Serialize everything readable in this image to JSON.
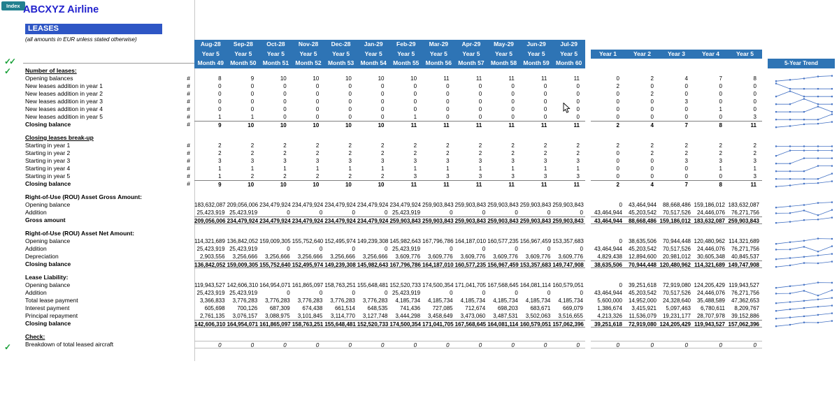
{
  "app": {
    "index_button": "Index",
    "title": "ABCXYZ Airline",
    "sheet_title": "LEASES",
    "subtitle": "(all amounts in EUR unless stated otherwise)",
    "checkmark": "✓",
    "double_checkmark": "✓✓"
  },
  "colors": {
    "header_blue": "#2E74B5",
    "banner_blue": "#2E56C5",
    "title_blue": "#2222CD",
    "teal": "#22808F",
    "check_green": "#18A038",
    "spark": "#4472C4"
  },
  "header": {
    "months": [
      {
        "cap": "Aug-28",
        "yr": "Year 5",
        "num": "Month 49"
      },
      {
        "cap": "Sep-28",
        "yr": "Year 5",
        "num": "Month 50"
      },
      {
        "cap": "Oct-28",
        "yr": "Year 5",
        "num": "Month 51"
      },
      {
        "cap": "Nov-28",
        "yr": "Year 5",
        "num": "Month 52"
      },
      {
        "cap": "Dec-28",
        "yr": "Year 5",
        "num": "Month 53"
      },
      {
        "cap": "Jan-29",
        "yr": "Year 5",
        "num": "Month 54"
      },
      {
        "cap": "Feb-29",
        "yr": "Year 5",
        "num": "Month 55"
      },
      {
        "cap": "Mar-29",
        "yr": "Year 5",
        "num": "Month 56"
      },
      {
        "cap": "Apr-29",
        "yr": "Year 5",
        "num": "Month 57"
      },
      {
        "cap": "May-29",
        "yr": "Year 5",
        "num": "Month 58"
      },
      {
        "cap": "Jun-29",
        "yr": "Year 5",
        "num": "Month 59"
      },
      {
        "cap": "Jul-29",
        "yr": "Year 5",
        "num": "Month 60"
      }
    ],
    "year_cols": [
      "Year 1",
      "Year 2",
      "Year 3",
      "Year 4",
      "Year 5"
    ],
    "trend_label": "5-Year Trend"
  },
  "sections": [
    {
      "title": "Number of leases:",
      "underline": true,
      "int": true,
      "rows": [
        {
          "label": "Opening balances",
          "hash": "#",
          "months": [
            8,
            9,
            10,
            10,
            10,
            10,
            10,
            11,
            11,
            11,
            11,
            11
          ],
          "years": [
            0,
            2,
            4,
            7,
            8
          ]
        },
        {
          "label": "New leases addition in year 1",
          "hash": "#",
          "months": [
            0,
            0,
            0,
            0,
            0,
            0,
            0,
            0,
            0,
            0,
            0,
            0
          ],
          "years": [
            2,
            0,
            0,
            0,
            0
          ]
        },
        {
          "label": "New leases addition in year 2",
          "hash": "#",
          "months": [
            0,
            0,
            0,
            0,
            0,
            0,
            0,
            0,
            0,
            0,
            0,
            0
          ],
          "years": [
            0,
            2,
            0,
            0,
            0
          ]
        },
        {
          "label": "New leases addition in year 3",
          "hash": "#",
          "months": [
            0,
            0,
            0,
            0,
            0,
            0,
            0,
            0,
            0,
            0,
            0,
            0
          ],
          "years": [
            0,
            0,
            3,
            0,
            0
          ]
        },
        {
          "label": "New leases addition in year 4",
          "hash": "#",
          "months": [
            0,
            0,
            0,
            0,
            0,
            0,
            0,
            0,
            0,
            0,
            0,
            0
          ],
          "years": [
            0,
            0,
            0,
            1,
            0
          ]
        },
        {
          "label": "New leases addition in year 5",
          "hash": "#",
          "months": [
            1,
            1,
            0,
            0,
            0,
            0,
            1,
            0,
            0,
            0,
            0,
            0
          ],
          "years": [
            0,
            0,
            0,
            0,
            3
          ]
        },
        {
          "label": "Closing balance",
          "hash": "#",
          "bold": true,
          "border": "t",
          "months": [
            9,
            10,
            10,
            10,
            10,
            10,
            11,
            11,
            11,
            11,
            11,
            11
          ],
          "years": [
            2,
            4,
            7,
            8,
            11
          ]
        }
      ]
    },
    {
      "title": "Closing leases break-up",
      "underline": true,
      "int": true,
      "rows": [
        {
          "label": "Starting in year 1",
          "hash": "#",
          "months": [
            2,
            2,
            2,
            2,
            2,
            2,
            2,
            2,
            2,
            2,
            2,
            2
          ],
          "years": [
            2,
            2,
            2,
            2,
            2
          ]
        },
        {
          "label": "Starting in year 2",
          "hash": "#",
          "months": [
            2,
            2,
            2,
            2,
            2,
            2,
            2,
            2,
            2,
            2,
            2,
            2
          ],
          "years": [
            0,
            2,
            2,
            2,
            2
          ]
        },
        {
          "label": "Starting in year 3",
          "hash": "#",
          "months": [
            3,
            3,
            3,
            3,
            3,
            3,
            3,
            3,
            3,
            3,
            3,
            3
          ],
          "years": [
            0,
            0,
            3,
            3,
            3
          ]
        },
        {
          "label": "Starting in year 4",
          "hash": "#",
          "months": [
            1,
            1,
            1,
            1,
            1,
            1,
            1,
            1,
            1,
            1,
            1,
            1
          ],
          "years": [
            0,
            0,
            0,
            1,
            1
          ]
        },
        {
          "label": "Starting in year 5",
          "hash": "#",
          "months": [
            1,
            2,
            2,
            2,
            2,
            2,
            3,
            3,
            3,
            3,
            3,
            3
          ],
          "years": [
            0,
            0,
            0,
            0,
            3
          ]
        },
        {
          "label": "Closing balance",
          "hash": "#",
          "bold": true,
          "border": "t",
          "months": [
            9,
            10,
            10,
            10,
            10,
            10,
            11,
            11,
            11,
            11,
            11,
            11
          ],
          "years": [
            2,
            4,
            7,
            8,
            11
          ]
        }
      ]
    },
    {
      "title": "Right-of-Use (ROU) Asset Gross Amount:",
      "rows": [
        {
          "label": "Opening balance",
          "months": [
            183632087,
            209056006,
            234479924,
            234479924,
            234479924,
            234479924,
            234479924,
            259903843,
            259903843,
            259903843,
            259903843,
            259903843
          ],
          "years": [
            0,
            43464944,
            88668486,
            159186012,
            183632087
          ]
        },
        {
          "label": "Addition",
          "months": [
            25423919,
            25423919,
            0,
            0,
            0,
            0,
            25423919,
            0,
            0,
            0,
            0,
            0
          ],
          "years": [
            43464944,
            45203542,
            70517526,
            24446076,
            76271756
          ]
        },
        {
          "label": "Gross amount",
          "bold": true,
          "border": "tb",
          "months": [
            209056006,
            234479924,
            234479924,
            234479924,
            234479924,
            234479924,
            259903843,
            259903843,
            259903843,
            259903843,
            259903843,
            259903843
          ],
          "years": [
            43464944,
            88668486,
            159186012,
            183632087,
            259903843
          ]
        }
      ]
    },
    {
      "title": "Right-of-Use (ROU) Asset Net Amount:",
      "rows": [
        {
          "label": "Opening balance",
          "months": [
            114321689,
            136842052,
            159009305,
            155752640,
            152495974,
            149239308,
            145982643,
            167796786,
            164187010,
            160577235,
            156967459,
            153357683
          ],
          "years": [
            0,
            38635506,
            70944448,
            120480962,
            114321689
          ]
        },
        {
          "label": "Addition",
          "months": [
            25423919,
            25423919,
            0,
            0,
            0,
            0,
            25423919,
            0,
            0,
            0,
            0,
            0
          ],
          "years": [
            43464944,
            45203542,
            70517526,
            24446076,
            76271756
          ]
        },
        {
          "label": "Depreciation",
          "months": [
            2903556,
            3256666,
            3256666,
            3256666,
            3256666,
            3256666,
            3609776,
            3609776,
            3609776,
            3609776,
            3609776,
            3609776
          ],
          "years": [
            4829438,
            12894600,
            20981012,
            30605348,
            40845537
          ]
        },
        {
          "label": "Closing balance",
          "bold": true,
          "border": "tb",
          "months": [
            136842052,
            159009305,
            155752640,
            152495974,
            149239308,
            145982643,
            167796786,
            164187010,
            160577235,
            156967459,
            153357683,
            149747908
          ],
          "years": [
            38635506,
            70944448,
            120480962,
            114321689,
            149747908
          ]
        }
      ]
    },
    {
      "title": "Lease Liability:",
      "rows": [
        {
          "label": "Opening balance",
          "months": [
            119943527,
            142606310,
            164954071,
            161865097,
            158763251,
            155648481,
            152520733,
            174500354,
            171041705,
            167568645,
            164081114,
            160579051
          ],
          "years": [
            0,
            39251618,
            72919080,
            124205429,
            119943527
          ]
        },
        {
          "label": "Addition",
          "months": [
            25423919,
            25423919,
            0,
            0,
            0,
            0,
            25423919,
            0,
            0,
            0,
            0,
            0
          ],
          "years": [
            43464944,
            45203542,
            70517526,
            24446076,
            76271756
          ]
        },
        {
          "label": "Total lease payment",
          "months": [
            3366833,
            3776283,
            3776283,
            3776283,
            3776283,
            3776283,
            4185734,
            4185734,
            4185734,
            4185734,
            4185734,
            4185734
          ],
          "years": [
            5600000,
            14952000,
            24328640,
            35488589,
            47362653
          ]
        },
        {
          "label": "Interest payment",
          "months": [
            605698,
            700126,
            687309,
            674438,
            661514,
            648535,
            741436,
            727085,
            712674,
            698203,
            683671,
            669079
          ],
          "years": [
            1386674,
            3415921,
            5097463,
            6780611,
            8209767
          ]
        },
        {
          "label": "Principal repayment",
          "months": [
            2761135,
            3076157,
            3088975,
            3101845,
            3114770,
            3127748,
            3444298,
            3458649,
            3473060,
            3487531,
            3502063,
            3516655
          ],
          "years": [
            4213326,
            11536079,
            19231177,
            28707978,
            39152886
          ]
        },
        {
          "label": "Closing balance",
          "bold": true,
          "border": "tb",
          "months": [
            142606310,
            164954071,
            161865097,
            158763251,
            155648481,
            152520733,
            174500354,
            171041705,
            167568645,
            164081114,
            160579051,
            157062396
          ],
          "years": [
            39251618,
            72919080,
            124205429,
            119943527,
            157062396
          ]
        }
      ]
    },
    {
      "title": "Check:",
      "underline": true,
      "int": true,
      "rows": [
        {
          "label": "Breakdown of total leased aircraft",
          "italic": true,
          "border": "ltb",
          "spark": false,
          "months": [
            0,
            0,
            0,
            0,
            0,
            0,
            0,
            0,
            0,
            0,
            0,
            0
          ],
          "years": [
            0,
            0,
            0,
            0,
            0
          ]
        }
      ]
    }
  ]
}
